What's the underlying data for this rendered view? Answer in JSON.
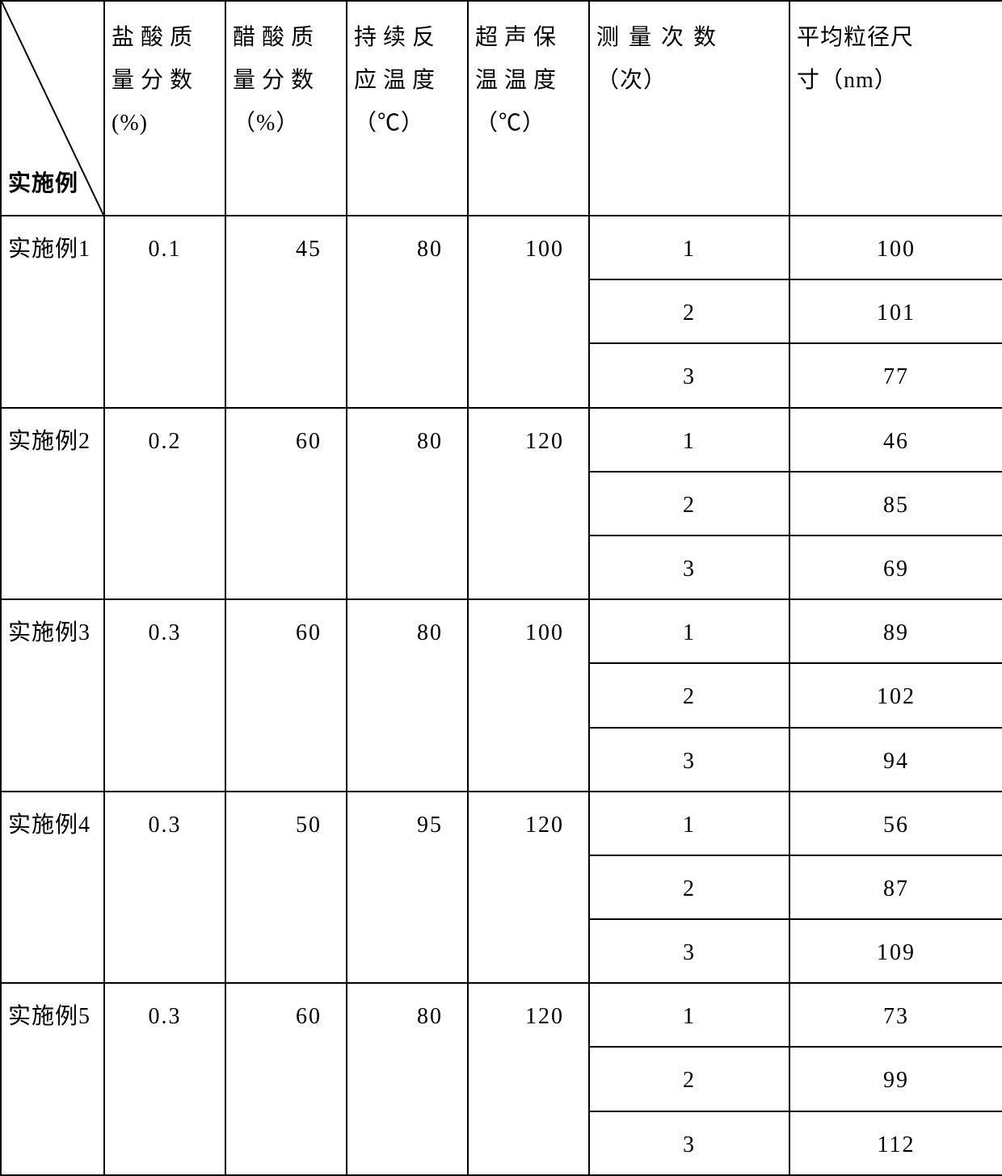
{
  "table": {
    "corner_label": "实施例",
    "columns": [
      {
        "line1": "盐酸质",
        "line2": "量分数",
        "unit": "(%)"
      },
      {
        "line1": "醋酸质",
        "line2": "量分数",
        "unit": "（%）"
      },
      {
        "line1": "持续反",
        "line2": "应温度",
        "unit": "（℃）"
      },
      {
        "line1": "超声保",
        "line2": "温温度",
        "unit": "（℃）"
      },
      {
        "line1": "测量次数",
        "line2": "（次）",
        "unit": ""
      },
      {
        "line1": "平均粒径尺",
        "line2": "寸（nm）",
        "unit": ""
      }
    ],
    "groups": [
      {
        "label": "实施例1",
        "hcl": "0.1",
        "acetic": "45",
        "temp1": "80",
        "temp2": "100",
        "rows": [
          [
            "1",
            "100"
          ],
          [
            "2",
            "101"
          ],
          [
            "3",
            "77"
          ]
        ]
      },
      {
        "label": "实施例2",
        "hcl": "0.2",
        "acetic": "60",
        "temp1": "80",
        "temp2": "120",
        "rows": [
          [
            "1",
            "46"
          ],
          [
            "2",
            "85"
          ],
          [
            "3",
            "69"
          ]
        ]
      },
      {
        "label": "实施例3",
        "hcl": "0.3",
        "acetic": "60",
        "temp1": "80",
        "temp2": "100",
        "rows": [
          [
            "1",
            "89"
          ],
          [
            "2",
            "102"
          ],
          [
            "3",
            "94"
          ]
        ]
      },
      {
        "label": "实施例4",
        "hcl": "0.3",
        "acetic": "50",
        "temp1": "95",
        "temp2": "120",
        "rows": [
          [
            "1",
            "56"
          ],
          [
            "2",
            "87"
          ],
          [
            "3",
            "109"
          ]
        ]
      },
      {
        "label": "实施例5",
        "hcl": "0.3",
        "acetic": "60",
        "temp1": "80",
        "temp2": "120",
        "rows": [
          [
            "1",
            "73"
          ],
          [
            "2",
            "99"
          ],
          [
            "3",
            "112"
          ]
        ]
      }
    ],
    "border_color": "#000000",
    "background_color": "#ffffff",
    "font_size": 28
  }
}
